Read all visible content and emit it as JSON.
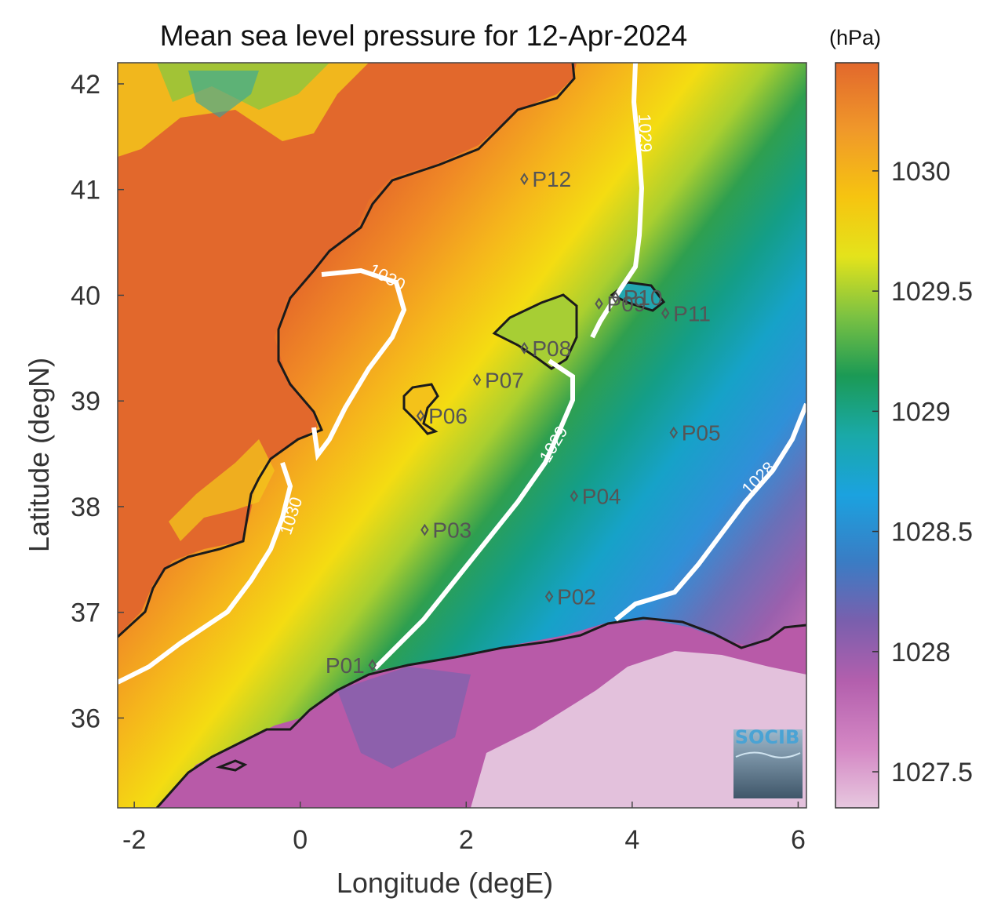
{
  "title": "Mean sea level pressure for 12-Apr-2024",
  "unit_label": "(hPa)",
  "x_axis": {
    "label": "Longitude (degE)",
    "ticks": [
      "-2",
      "0",
      "2",
      "4",
      "6"
    ],
    "range": [
      -2.2,
      6.1
    ]
  },
  "y_axis": {
    "label": "Latitude (degN)",
    "ticks": [
      "36",
      "37",
      "38",
      "39",
      "40",
      "41",
      "42"
    ],
    "range": [
      35.15,
      42.2
    ]
  },
  "colorbar": {
    "ticks": [
      "1027.5",
      "1028",
      "1028.5",
      "1029",
      "1029.5",
      "1030"
    ],
    "range": [
      1027.35,
      1030.45
    ],
    "colors": [
      "#e3c1dc",
      "#c36bb1",
      "#7a5fad",
      "#3a7cc4",
      "#1ba2df",
      "#1aa9a8",
      "#1b9a55",
      "#7cc242",
      "#dde31d",
      "#f6d710",
      "#f3a321",
      "#e4672a"
    ]
  },
  "contours": [
    {
      "label": "1030"
    },
    {
      "label": "1030"
    },
    {
      "label": "1029"
    },
    {
      "label": "1029"
    },
    {
      "label": "1028"
    }
  ],
  "points": [
    {
      "name": "P01",
      "lon": 0.87,
      "lat": 36.5
    },
    {
      "name": "P02",
      "lon": 3.0,
      "lat": 37.15
    },
    {
      "name": "P03",
      "lon": 1.5,
      "lat": 37.78
    },
    {
      "name": "P04",
      "lon": 3.3,
      "lat": 38.1
    },
    {
      "name": "P05",
      "lon": 4.5,
      "lat": 38.7
    },
    {
      "name": "P06",
      "lon": 1.45,
      "lat": 38.86
    },
    {
      "name": "P07",
      "lon": 2.13,
      "lat": 39.2
    },
    {
      "name": "P08",
      "lon": 2.7,
      "lat": 39.5
    },
    {
      "name": "P09",
      "lon": 3.6,
      "lat": 39.92
    },
    {
      "name": "P10",
      "lon": 3.8,
      "lat": 39.98
    },
    {
      "name": "P11",
      "lon": 4.4,
      "lat": 39.83
    },
    {
      "name": "P12",
      "lon": 2.7,
      "lat": 41.1
    }
  ],
  "logo": {
    "text": "SOCIB"
  }
}
